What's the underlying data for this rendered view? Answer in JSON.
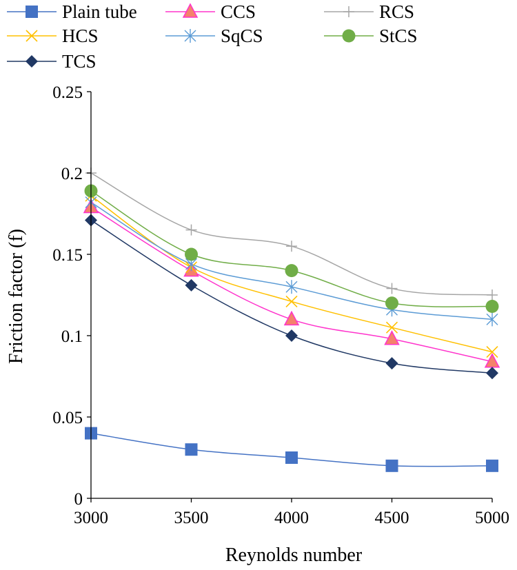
{
  "chart_data": {
    "type": "line",
    "title": "",
    "xlabel": "Reynolds number",
    "ylabel": "Friction factor (f)",
    "x": [
      3000,
      3500,
      4000,
      4500,
      5000
    ],
    "xlim": [
      3000,
      5000
    ],
    "ylim": [
      0,
      0.25
    ],
    "x_ticks": [
      "3000",
      "3500",
      "4000",
      "4500",
      "5000"
    ],
    "y_ticks": [
      "0",
      "0.05",
      "0.1",
      "0.15",
      "0.2",
      "0.25"
    ],
    "grid": false,
    "smooth": true,
    "legend_position": "top",
    "series": [
      {
        "name": "Plain tube",
        "values": [
          0.04,
          0.03,
          0.025,
          0.02,
          0.02
        ],
        "color": "#4472C4",
        "marker": "square-marker"
      },
      {
        "name": "CCS",
        "values": [
          0.179,
          0.14,
          0.11,
          0.098,
          0.084
        ],
        "color": "#FF33CC",
        "marker": "triangle-marker",
        "marker_fill": "#F4826B"
      },
      {
        "name": "RCS",
        "values": [
          0.2,
          0.165,
          0.155,
          0.129,
          0.125
        ],
        "color": "#A5A5A5",
        "marker": "plus-marker"
      },
      {
        "name": "HCS",
        "values": [
          0.186,
          0.142,
          0.121,
          0.105,
          0.09
        ],
        "color": "#FFC000",
        "marker": "x-marker"
      },
      {
        "name": "SqCS",
        "values": [
          0.182,
          0.144,
          0.13,
          0.116,
          0.11
        ],
        "color": "#5B9BD5",
        "marker": "star-marker"
      },
      {
        "name": "StCS",
        "values": [
          0.189,
          0.15,
          0.14,
          0.12,
          0.118
        ],
        "color": "#70AD47",
        "marker": "circle-marker"
      },
      {
        "name": "TCS",
        "values": [
          0.171,
          0.131,
          0.1,
          0.083,
          0.077
        ],
        "color": "#203864",
        "marker": "diamond-marker"
      }
    ]
  }
}
